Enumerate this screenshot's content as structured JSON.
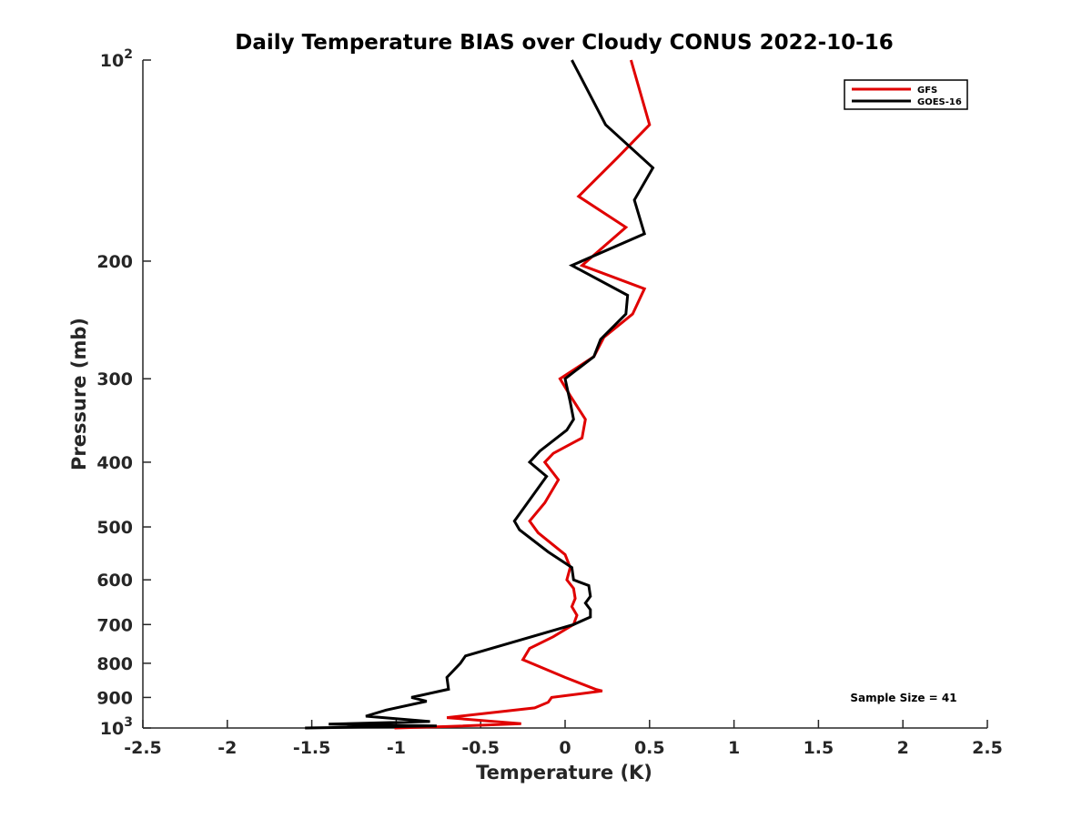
{
  "chart_data": {
    "type": "line",
    "title": "Daily Temperature BIAS over Cloudy CONUS 2022-10-16",
    "xlabel": "Temperature (K)",
    "ylabel": "Pressure (mb)",
    "xlim": [
      -2.5,
      2.5
    ],
    "ylim": [
      1000,
      100
    ],
    "y_scale": "log",
    "y_direction": "reversed",
    "grid": false,
    "legend_position": "top-right",
    "x_ticks": [
      "-2.5",
      "-2",
      "-1.5",
      "-1",
      "-0.5",
      "0",
      "0.5",
      "1",
      "1.5",
      "2",
      "2.5"
    ],
    "y_ticks": [
      {
        "value": 100,
        "base": "10",
        "exp": "2"
      },
      {
        "value": 200,
        "label": "200"
      },
      {
        "value": 300,
        "label": "300"
      },
      {
        "value": 400,
        "label": "400"
      },
      {
        "value": 500,
        "label": "500"
      },
      {
        "value": 600,
        "label": "600"
      },
      {
        "value": 700,
        "label": "700"
      },
      {
        "value": 800,
        "label": "800"
      },
      {
        "value": 900,
        "label": "900"
      },
      {
        "value": 1000,
        "base": "10",
        "exp": "3"
      }
    ],
    "series": [
      {
        "name": "GFS",
        "color": "#e00000",
        "points": [
          [
            0.39,
            100
          ],
          [
            0.5,
            125
          ],
          [
            0.31,
            140
          ],
          [
            0.08,
            160
          ],
          [
            0.36,
            178
          ],
          [
            0.1,
            203
          ],
          [
            0.47,
            220
          ],
          [
            0.4,
            240
          ],
          [
            0.23,
            260
          ],
          [
            0.17,
            278
          ],
          [
            -0.03,
            300
          ],
          [
            0.03,
            318
          ],
          [
            0.12,
            345
          ],
          [
            0.1,
            368
          ],
          [
            -0.07,
            388
          ],
          [
            -0.12,
            400
          ],
          [
            -0.04,
            425
          ],
          [
            -0.12,
            460
          ],
          [
            -0.21,
            490
          ],
          [
            -0.16,
            510
          ],
          [
            0.0,
            550
          ],
          [
            0.03,
            575
          ],
          [
            0.01,
            600
          ],
          [
            0.05,
            618
          ],
          [
            0.06,
            640
          ],
          [
            0.04,
            658
          ],
          [
            0.07,
            678
          ],
          [
            0.05,
            700
          ],
          [
            -0.07,
            730
          ],
          [
            -0.21,
            760
          ],
          [
            -0.25,
            790
          ],
          [
            0.0,
            840
          ],
          [
            0.18,
            875
          ],
          [
            0.22,
            880
          ],
          [
            -0.08,
            900
          ],
          [
            -0.1,
            915
          ],
          [
            -0.18,
            933
          ],
          [
            -0.7,
            965
          ],
          [
            -0.26,
            985
          ],
          [
            -0.7,
            995
          ],
          [
            -1.01,
            1000
          ]
        ]
      },
      {
        "name": "GOES-16",
        "color": "#000000",
        "points": [
          [
            0.04,
            100
          ],
          [
            0.24,
            125
          ],
          [
            0.52,
            145
          ],
          [
            0.41,
            162
          ],
          [
            0.47,
            182
          ],
          [
            0.04,
            203
          ],
          [
            0.37,
            225
          ],
          [
            0.36,
            240
          ],
          [
            0.21,
            262
          ],
          [
            0.17,
            278
          ],
          [
            0.0,
            300
          ],
          [
            0.03,
            325
          ],
          [
            0.05,
            345
          ],
          [
            0.01,
            358
          ],
          [
            -0.15,
            385
          ],
          [
            -0.21,
            400
          ],
          [
            -0.11,
            420
          ],
          [
            -0.3,
            490
          ],
          [
            -0.27,
            505
          ],
          [
            -0.1,
            545
          ],
          [
            0.04,
            575
          ],
          [
            0.05,
            600
          ],
          [
            0.14,
            612
          ],
          [
            0.15,
            635
          ],
          [
            0.12,
            650
          ],
          [
            0.15,
            665
          ],
          [
            0.15,
            682
          ],
          [
            0.05,
            700
          ],
          [
            -0.59,
            780
          ],
          [
            -0.62,
            800
          ],
          [
            -0.7,
            840
          ],
          [
            -0.69,
            875
          ],
          [
            -0.91,
            900
          ],
          [
            -0.82,
            912
          ],
          [
            -1.06,
            940
          ],
          [
            -1.18,
            960
          ],
          [
            -0.8,
            978
          ],
          [
            -1.4,
            987
          ],
          [
            -0.76,
            993
          ],
          [
            -1.54,
            1000
          ]
        ]
      }
    ],
    "annotation": "Sample Size = 41"
  }
}
